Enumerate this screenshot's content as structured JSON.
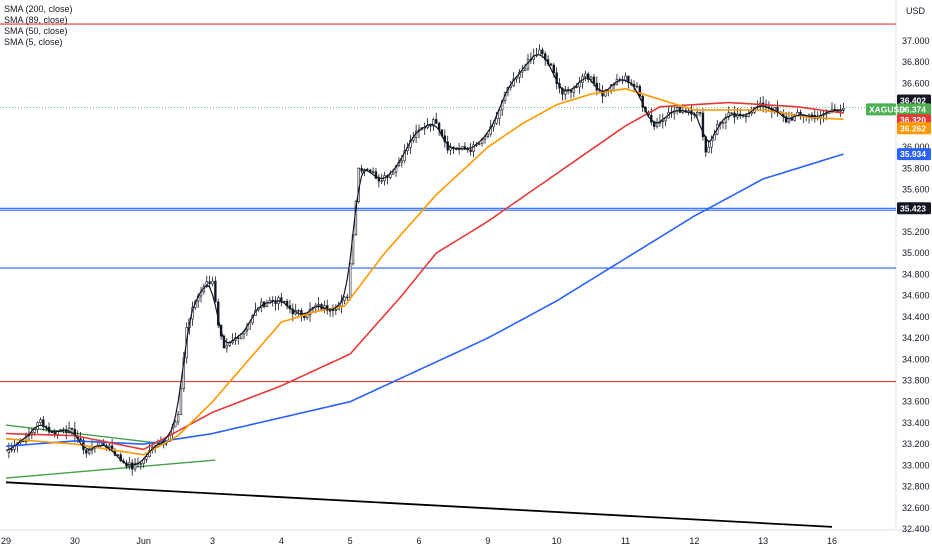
{
  "legend": {
    "items": [
      "SMA (200, close)",
      "SMA (89, close)",
      "SMA (50, close)",
      "SMA (5, close)"
    ]
  },
  "currency": "USD",
  "colors": {
    "sma200": "#2962ff",
    "sma89": "#e53935",
    "sma50": "#ff9800",
    "sma5": "#131722",
    "candle": "#131722",
    "resistance": "#e53935",
    "support": "#2962ff",
    "trend_green": "#43a047",
    "trend_black": "#000000",
    "symbol_tag": "#4caf50"
  },
  "chart_data": {
    "type": "line",
    "title": "",
    "xlabel": "",
    "ylabel": "",
    "symbol": "XAGUSD",
    "x_ticks": [
      "29",
      "30",
      "Jun",
      "3",
      "4",
      "5",
      "6",
      "9",
      "10",
      "11",
      "12",
      "13",
      "16"
    ],
    "x_tick_index": [
      0,
      24,
      48,
      72,
      96,
      120,
      144,
      168,
      192,
      216,
      240,
      264,
      288
    ],
    "ylim": [
      32.4,
      37.2
    ],
    "y_ticks": [
      "32.400",
      "32.600",
      "32.800",
      "33.000",
      "33.200",
      "33.400",
      "33.600",
      "33.800",
      "34.000",
      "34.200",
      "34.400",
      "34.600",
      "34.800",
      "35.000",
      "35.200",
      "35.400",
      "35.600",
      "35.800",
      "36.000",
      "36.200",
      "36.400",
      "36.600",
      "36.800",
      "37.000"
    ],
    "horizontal_levels": [
      {
        "value": 37.16,
        "kind": "resistance"
      },
      {
        "value": 35.423,
        "kind": "support"
      },
      {
        "value": 35.405,
        "kind": "support"
      },
      {
        "value": 34.86,
        "kind": "support"
      },
      {
        "value": 33.79,
        "kind": "resistance"
      }
    ],
    "price_tags": [
      {
        "label": "36.402",
        "value": 36.402,
        "color": "#131722"
      },
      {
        "label": "36.374",
        "value": 36.374,
        "color": "#4caf50",
        "symbol": "XAGUSD"
      },
      {
        "label": "36.320",
        "value": 36.32,
        "color": "#e53935"
      },
      {
        "label": "36.262",
        "value": 36.262,
        "color": "#ff9800"
      },
      {
        "label": "35.934",
        "value": 35.934,
        "color": "#2962ff"
      },
      {
        "label": "35.423",
        "value": 35.423,
        "color": "#131722"
      }
    ],
    "price_anchors": [
      [
        0,
        33.12
      ],
      [
        3,
        33.2
      ],
      [
        8,
        33.28
      ],
      [
        12,
        33.42
      ],
      [
        16,
        33.3
      ],
      [
        20,
        33.35
      ],
      [
        24,
        33.3
      ],
      [
        28,
        33.12
      ],
      [
        32,
        33.2
      ],
      [
        36,
        33.18
      ],
      [
        40,
        33.05
      ],
      [
        44,
        32.98
      ],
      [
        48,
        33.05
      ],
      [
        52,
        33.2
      ],
      [
        56,
        33.25
      ],
      [
        60,
        33.45
      ],
      [
        63,
        34.3
      ],
      [
        66,
        34.55
      ],
      [
        69,
        34.7
      ],
      [
        72,
        34.75
      ],
      [
        74,
        34.3
      ],
      [
        76,
        34.08
      ],
      [
        80,
        34.2
      ],
      [
        84,
        34.3
      ],
      [
        88,
        34.5
      ],
      [
        92,
        34.55
      ],
      [
        96,
        34.55
      ],
      [
        100,
        34.45
      ],
      [
        104,
        34.42
      ],
      [
        108,
        34.5
      ],
      [
        112,
        34.48
      ],
      [
        116,
        34.5
      ],
      [
        119,
        34.6
      ],
      [
        121,
        35.2
      ],
      [
        123,
        35.8
      ],
      [
        126,
        35.8
      ],
      [
        130,
        35.7
      ],
      [
        134,
        35.75
      ],
      [
        138,
        35.9
      ],
      [
        142,
        36.1
      ],
      [
        146,
        36.2
      ],
      [
        150,
        36.25
      ],
      [
        154,
        36.0
      ],
      [
        158,
        35.98
      ],
      [
        162,
        35.98
      ],
      [
        166,
        36.05
      ],
      [
        170,
        36.2
      ],
      [
        174,
        36.5
      ],
      [
        178,
        36.65
      ],
      [
        182,
        36.8
      ],
      [
        186,
        36.9
      ],
      [
        190,
        36.75
      ],
      [
        194,
        36.5
      ],
      [
        198,
        36.55
      ],
      [
        202,
        36.7
      ],
      [
        205,
        36.6
      ],
      [
        208,
        36.5
      ],
      [
        212,
        36.6
      ],
      [
        216,
        36.65
      ],
      [
        220,
        36.55
      ],
      [
        222,
        36.4
      ],
      [
        226,
        36.2
      ],
      [
        230,
        36.3
      ],
      [
        234,
        36.35
      ],
      [
        238,
        36.35
      ],
      [
        242,
        36.3
      ],
      [
        244,
        35.95
      ],
      [
        248,
        36.2
      ],
      [
        252,
        36.3
      ],
      [
        256,
        36.28
      ],
      [
        260,
        36.35
      ],
      [
        264,
        36.4
      ],
      [
        268,
        36.35
      ],
      [
        272,
        36.25
      ],
      [
        276,
        36.3
      ],
      [
        280,
        36.3
      ],
      [
        284,
        36.28
      ],
      [
        288,
        36.35
      ],
      [
        292,
        36.374
      ]
    ],
    "series": [
      {
        "key": "sma200",
        "anchors": [
          [
            0,
            33.18
          ],
          [
            24,
            33.23
          ],
          [
            48,
            33.2
          ],
          [
            72,
            33.3
          ],
          [
            96,
            33.45
          ],
          [
            120,
            33.6
          ],
          [
            144,
            33.9
          ],
          [
            168,
            34.2
          ],
          [
            192,
            34.55
          ],
          [
            216,
            34.95
          ],
          [
            240,
            35.35
          ],
          [
            264,
            35.7
          ],
          [
            292,
            35.934
          ]
        ]
      },
      {
        "key": "sma89",
        "anchors": [
          [
            0,
            33.3
          ],
          [
            24,
            33.28
          ],
          [
            48,
            33.15
          ],
          [
            72,
            33.5
          ],
          [
            96,
            33.75
          ],
          [
            120,
            34.05
          ],
          [
            138,
            34.6
          ],
          [
            150,
            35.0
          ],
          [
            168,
            35.3
          ],
          [
            192,
            35.75
          ],
          [
            216,
            36.2
          ],
          [
            228,
            36.38
          ],
          [
            252,
            36.42
          ],
          [
            276,
            36.38
          ],
          [
            292,
            36.32
          ]
        ]
      },
      {
        "key": "sma50",
        "anchors": [
          [
            0,
            33.25
          ],
          [
            24,
            33.2
          ],
          [
            48,
            33.1
          ],
          [
            60,
            33.28
          ],
          [
            72,
            33.6
          ],
          [
            96,
            34.35
          ],
          [
            108,
            34.45
          ],
          [
            118,
            34.5
          ],
          [
            132,
            35.0
          ],
          [
            150,
            35.55
          ],
          [
            168,
            36.0
          ],
          [
            180,
            36.22
          ],
          [
            192,
            36.4
          ],
          [
            204,
            36.5
          ],
          [
            216,
            36.55
          ],
          [
            228,
            36.45
          ],
          [
            240,
            36.35
          ],
          [
            264,
            36.35
          ],
          [
            280,
            36.28
          ],
          [
            292,
            36.262
          ]
        ]
      }
    ],
    "trendlines": [
      {
        "color_key": "trend_green",
        "points": [
          [
            0,
            33.38
          ],
          [
            56,
            33.2
          ]
        ]
      },
      {
        "color_key": "trend_green",
        "points": [
          [
            0,
            32.88
          ],
          [
            73,
            33.05
          ]
        ]
      },
      {
        "color_key": "trend_black",
        "points": [
          [
            0,
            32.84
          ],
          [
            288,
            32.42
          ]
        ]
      }
    ]
  }
}
